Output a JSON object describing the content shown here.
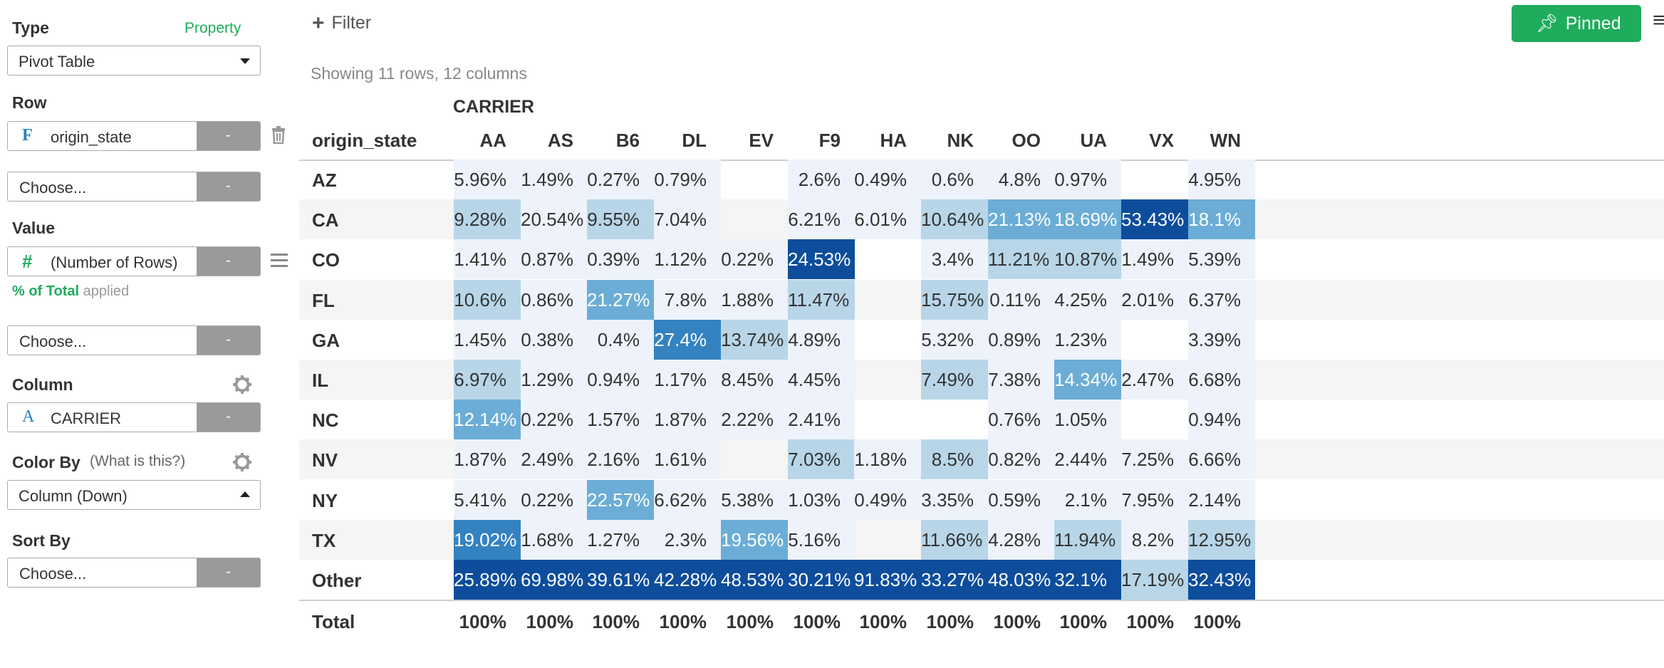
{
  "panel": {
    "type_label": "Type",
    "property_link": "Property",
    "type_value": "Pivot Table",
    "row_label": "Row",
    "row_icon": "F",
    "row_field": "origin_state",
    "row_choose": "Choose...",
    "value_label": "Value",
    "value_icon": "#",
    "value_field": "(Number of Rows)",
    "pct_total": "% of Total",
    "applied": "applied",
    "value_choose": "Choose...",
    "column_label": "Column",
    "column_icon": "A",
    "column_field": "CARRIER",
    "colorby_label": "Color By",
    "what_is_this": "(What is this?)",
    "colorby_value": "Column (Down)",
    "sortby_label": "Sort By",
    "sortby_choose": "Choose...",
    "minus": "-"
  },
  "toolbar": {
    "filter_label": "Filter",
    "pinned_label": "Pinned"
  },
  "summary": "Showing 11 rows, 12 columns",
  "table": {
    "column_group": "CARRIER",
    "row_header": "origin_state",
    "columns": [
      "AA",
      "AS",
      "B6",
      "DL",
      "EV",
      "F9",
      "HA",
      "NK",
      "OO",
      "UA",
      "VX",
      "WN"
    ],
    "rows": [
      {
        "name": "AZ",
        "cells": [
          "5.96%",
          "1.49%",
          "0.27%",
          "0.79%",
          "",
          "2.6%",
          "0.49%",
          "0.6%",
          "4.8%",
          "0.97%",
          "",
          "4.95%"
        ]
      },
      {
        "name": "CA",
        "cells": [
          "9.28%",
          "20.54%",
          "9.55%",
          "7.04%",
          "",
          "6.21%",
          "6.01%",
          "10.64%",
          "21.13%",
          "18.69%",
          "53.43%",
          "18.1%"
        ]
      },
      {
        "name": "CO",
        "cells": [
          "1.41%",
          "0.87%",
          "0.39%",
          "1.12%",
          "0.22%",
          "24.53%",
          "",
          "3.4%",
          "11.21%",
          "10.87%",
          "1.49%",
          "5.39%"
        ]
      },
      {
        "name": "FL",
        "cells": [
          "10.6%",
          "0.86%",
          "21.27%",
          "7.8%",
          "1.88%",
          "11.47%",
          "",
          "15.75%",
          "0.11%",
          "4.25%",
          "2.01%",
          "6.37%"
        ]
      },
      {
        "name": "GA",
        "cells": [
          "1.45%",
          "0.38%",
          "0.4%",
          "27.4%",
          "13.74%",
          "4.89%",
          "",
          "5.32%",
          "0.89%",
          "1.23%",
          "",
          "3.39%"
        ]
      },
      {
        "name": "IL",
        "cells": [
          "6.97%",
          "1.29%",
          "0.94%",
          "1.17%",
          "8.45%",
          "4.45%",
          "",
          "7.49%",
          "7.38%",
          "14.34%",
          "2.47%",
          "6.68%"
        ]
      },
      {
        "name": "NC",
        "cells": [
          "12.14%",
          "0.22%",
          "1.57%",
          "1.87%",
          "2.22%",
          "2.41%",
          "",
          "",
          "0.76%",
          "1.05%",
          "",
          "0.94%"
        ]
      },
      {
        "name": "NV",
        "cells": [
          "1.87%",
          "2.49%",
          "2.16%",
          "1.61%",
          "",
          "7.03%",
          "1.18%",
          "8.5%",
          "0.82%",
          "2.44%",
          "7.25%",
          "6.66%"
        ]
      },
      {
        "name": "NY",
        "cells": [
          "5.41%",
          "0.22%",
          "22.57%",
          "6.62%",
          "5.38%",
          "1.03%",
          "0.49%",
          "3.35%",
          "0.59%",
          "2.1%",
          "7.95%",
          "2.14%"
        ]
      },
      {
        "name": "TX",
        "cells": [
          "19.02%",
          "1.68%",
          "1.27%",
          "2.3%",
          "19.56%",
          "5.16%",
          "",
          "11.66%",
          "4.28%",
          "11.94%",
          "8.2%",
          "12.95%"
        ]
      },
      {
        "name": "Other",
        "cells": [
          "25.89%",
          "69.98%",
          "39.61%",
          "42.28%",
          "48.53%",
          "30.21%",
          "91.83%",
          "33.27%",
          "48.03%",
          "32.1%",
          "17.19%",
          "32.43%"
        ]
      }
    ],
    "total": {
      "name": "Total",
      "cells": [
        "100%",
        "100%",
        "100%",
        "100%",
        "100%",
        "100%",
        "100%",
        "100%",
        "100%",
        "100%",
        "100%",
        "100%"
      ]
    },
    "levels": [
      [
        0,
        0,
        0,
        0,
        -1,
        0,
        0,
        0,
        0,
        0,
        -1,
        0
      ],
      [
        1,
        0,
        1,
        0,
        -1,
        0,
        0,
        1,
        2,
        2,
        4,
        2
      ],
      [
        0,
        0,
        0,
        0,
        0,
        4,
        -1,
        0,
        1,
        1,
        0,
        0
      ],
      [
        1,
        0,
        2,
        0,
        0,
        1,
        -1,
        1,
        0,
        0,
        0,
        0
      ],
      [
        0,
        0,
        0,
        3,
        1,
        0,
        -1,
        0,
        0,
        0,
        -1,
        0
      ],
      [
        1,
        0,
        0,
        0,
        0,
        0,
        -1,
        1,
        0,
        2,
        0,
        0
      ],
      [
        2,
        0,
        0,
        0,
        0,
        0,
        -1,
        -1,
        0,
        0,
        -1,
        0
      ],
      [
        0,
        0,
        0,
        0,
        -1,
        1,
        0,
        1,
        0,
        0,
        0,
        0
      ],
      [
        0,
        0,
        2,
        0,
        0,
        0,
        0,
        0,
        0,
        0,
        0,
        0
      ],
      [
        3,
        0,
        0,
        0,
        2,
        0,
        -1,
        1,
        0,
        1,
        0,
        1
      ],
      [
        4,
        4,
        4,
        4,
        4,
        4,
        4,
        4,
        4,
        4,
        1,
        4
      ]
    ],
    "palette": {
      "0": "#eef3fb",
      "1": "#b8d6e8",
      "2": "#6badd6",
      "3": "#3482c0",
      "4": "#0d4d9c",
      "dark_text": "#ffffff",
      "accent_green": "#1fac5c",
      "icon_blue": "#2c7fbd",
      "icon_green": "#1fac5c"
    }
  }
}
